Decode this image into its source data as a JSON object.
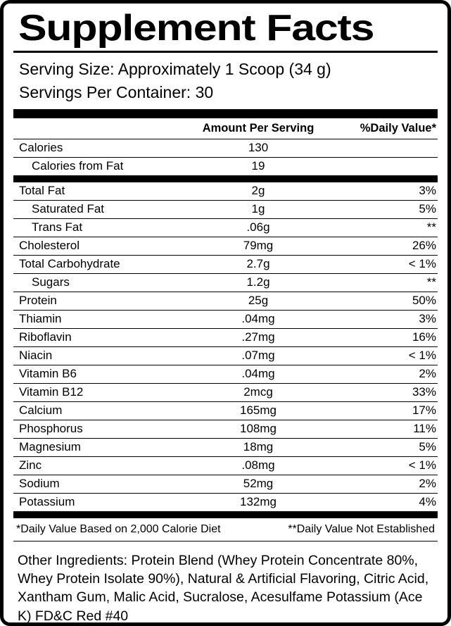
{
  "label": {
    "title": "Supplement Facts",
    "serving_size": "Serving Size: Approximately 1 Scoop (34 g)",
    "servings_per_container": "Servings Per Container: 30",
    "columns": {
      "amount_header": "Amount Per Serving",
      "dv_header": "%Daily Value*"
    },
    "calorie_rows": [
      {
        "name": "Calories",
        "amount": "130",
        "dv": "",
        "indent": false
      },
      {
        "name": "Calories from Fat",
        "amount": "19",
        "dv": "",
        "indent": true
      }
    ],
    "nutrient_rows": [
      {
        "name": "Total Fat",
        "amount": "2g",
        "dv": "3%",
        "indent": false
      },
      {
        "name": "Saturated Fat",
        "amount": "1g",
        "dv": "5%",
        "indent": true
      },
      {
        "name": "Trans Fat",
        "amount": ".06g",
        "dv": "**",
        "indent": true
      },
      {
        "name": "Cholesterol",
        "amount": "79mg",
        "dv": "26%",
        "indent": false
      },
      {
        "name": "Total Carbohydrate",
        "amount": "2.7g",
        "dv": "< 1%",
        "indent": false
      },
      {
        "name": "Sugars",
        "amount": "1.2g",
        "dv": "**",
        "indent": true
      },
      {
        "name": "Protein",
        "amount": "25g",
        "dv": "50%",
        "indent": false
      },
      {
        "name": "Thiamin",
        "amount": ".04mg",
        "dv": "3%",
        "indent": false
      },
      {
        "name": "Riboflavin",
        "amount": ".27mg",
        "dv": "16%",
        "indent": false
      },
      {
        "name": "Niacin",
        "amount": ".07mg",
        "dv": "< 1%",
        "indent": false
      },
      {
        "name": "Vitamin B6",
        "amount": ".04mg",
        "dv": "2%",
        "indent": false
      },
      {
        "name": "Vitamin B12",
        "amount": "2mcg",
        "dv": "33%",
        "indent": false
      },
      {
        "name": "Calcium",
        "amount": "165mg",
        "dv": "17%",
        "indent": false
      },
      {
        "name": "Phosphorus",
        "amount": "108mg",
        "dv": "11%",
        "indent": false
      },
      {
        "name": "Magnesium",
        "amount": "18mg",
        "dv": "5%",
        "indent": false
      },
      {
        "name": "Zinc",
        "amount": ".08mg",
        "dv": "< 1%",
        "indent": false
      },
      {
        "name": "Sodium",
        "amount": "52mg",
        "dv": "2%",
        "indent": false
      },
      {
        "name": "Potassium",
        "amount": "132mg",
        "dv": "4%",
        "indent": false
      }
    ],
    "footnotes": {
      "daily_value_basis": "*Daily Value Based on 2,000 Calorie Diet",
      "not_established": "**Daily Value Not Established"
    },
    "other_ingredients": "Other Ingredients: Protein Blend (Whey Protein Concentrate 80%, Whey Protein Isolate 90%), Natural & Artificial Flavoring, Citric Acid, Xantham Gum, Malic Acid, Sucralose, Acesulfame Potassium (Ace K) FD&C Red #40",
    "colors": {
      "ink": "#000000",
      "background": "#ffffff"
    }
  }
}
